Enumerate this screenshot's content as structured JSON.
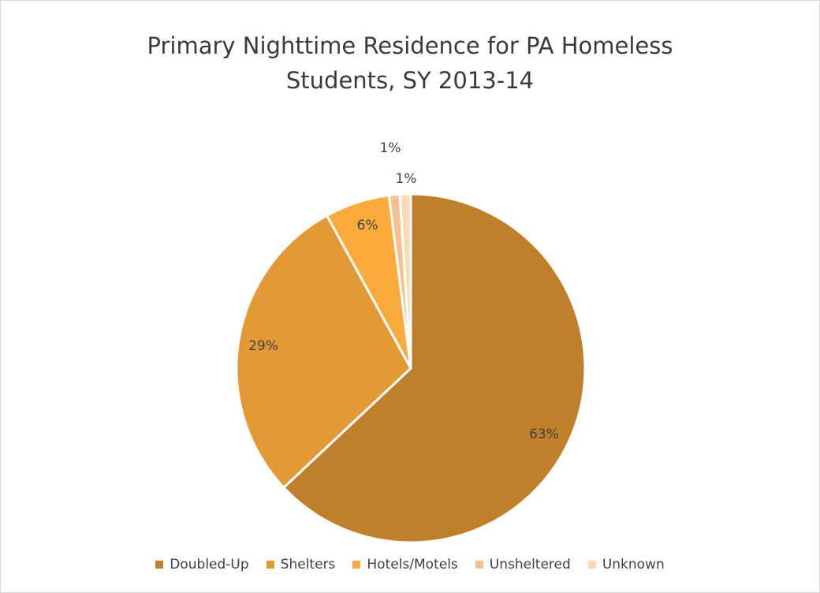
{
  "chart_data": {
    "type": "pie",
    "title": "Primary Nighttime Residence for PA Homeless Students, SY 2013-14",
    "title_lines": [
      "Primary Nighttime Residence for PA Homeless",
      "Students, SY 2013-14"
    ],
    "categories": [
      "Doubled-Up",
      "Shelters",
      "Hotels/Motels",
      "Unsheltered",
      "Unknown"
    ],
    "values": [
      63,
      29,
      6,
      1,
      1
    ],
    "labels": [
      "63%",
      "29%",
      "6%",
      "1%",
      "1%"
    ],
    "colors": [
      "#c07f2b",
      "#e39a36",
      "#fbaa3c",
      "#f5c191",
      "#fbd9b4"
    ],
    "legend_position": "bottom"
  }
}
